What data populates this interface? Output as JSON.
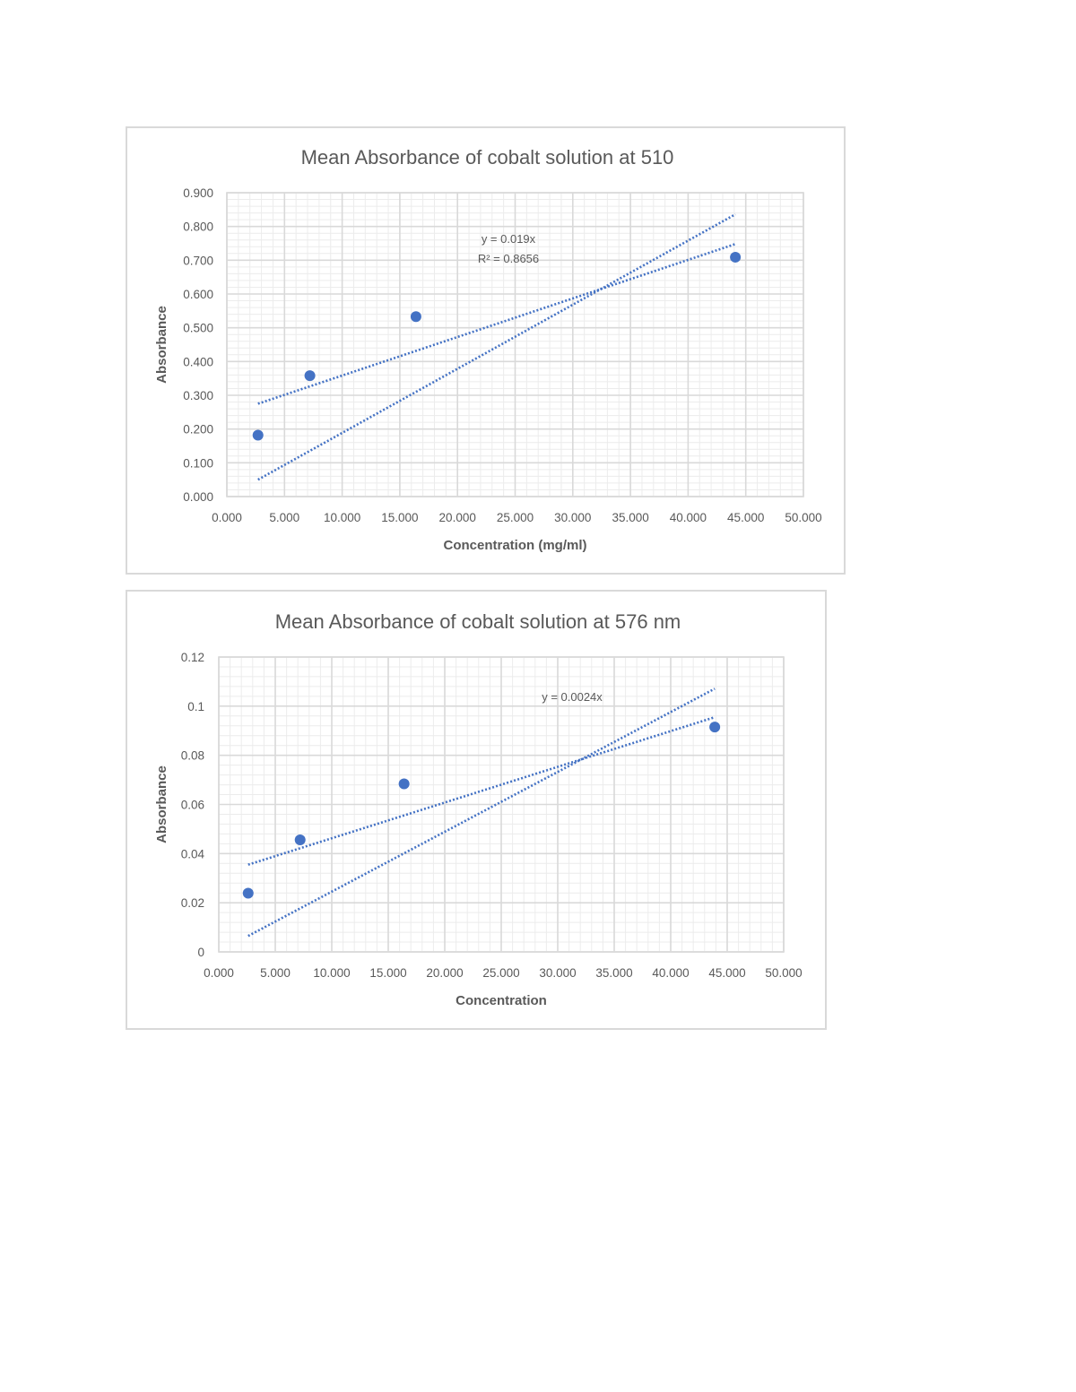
{
  "chart_data": [
    {
      "type": "scatter",
      "title": "Mean Absorbance of cobalt solution at 510",
      "xlabel": "Concentration (mg/ml)",
      "ylabel": "Absorbance",
      "xlim": [
        0,
        50
      ],
      "ylim": [
        0,
        0.9
      ],
      "x_ticks": [
        "0.000",
        "5.000",
        "10.000",
        "15.000",
        "20.000",
        "25.000",
        "30.000",
        "35.000",
        "40.000",
        "45.000",
        "50.000"
      ],
      "y_ticks": [
        "0.000",
        "0.100",
        "0.200",
        "0.300",
        "0.400",
        "0.500",
        "0.600",
        "0.700",
        "0.800",
        "0.900"
      ],
      "grid": true,
      "legend": "none",
      "series": [
        {
          "x": [
            2.7,
            7.2,
            16.4,
            44.1
          ],
          "y": [
            0.182,
            0.358,
            0.533,
            0.709
          ],
          "color": "#4472c4"
        }
      ],
      "trendlines": [
        {
          "kind": "linear",
          "x": [
            2.7,
            44.1
          ],
          "y": [
            0.275,
            0.748
          ],
          "color": "#4472c4"
        },
        {
          "kind": "linear-through-origin",
          "x": [
            2.7,
            44.1
          ],
          "y": [
            0.05,
            0.836
          ],
          "color": "#4472c4"
        }
      ],
      "annotations": [
        "y = 0.019x",
        "R² = 0.8656"
      ]
    },
    {
      "type": "scatter",
      "title": "Mean Absorbance of cobalt solution at 576 nm",
      "xlabel": "Concentration",
      "ylabel": "Absorbance",
      "xlim": [
        0,
        50
      ],
      "ylim": [
        0,
        0.12
      ],
      "x_ticks": [
        "0.000",
        "5.000",
        "10.000",
        "15.000",
        "20.000",
        "25.000",
        "30.000",
        "35.000",
        "40.000",
        "45.000",
        "50.000"
      ],
      "y_ticks": [
        "0",
        "0.02",
        "0.04",
        "0.06",
        "0.08",
        "0.1",
        "0.12"
      ],
      "grid": true,
      "legend": "none",
      "series": [
        {
          "x": [
            2.6,
            7.2,
            16.4,
            43.9
          ],
          "y": [
            0.0239,
            0.0456,
            0.0684,
            0.0915
          ],
          "color": "#4472c4"
        }
      ],
      "trendlines": [
        {
          "kind": "linear",
          "x": [
            2.6,
            43.9
          ],
          "y": [
            0.0355,
            0.0955
          ],
          "color": "#4472c4"
        },
        {
          "kind": "linear-through-origin",
          "x": [
            2.6,
            43.9
          ],
          "y": [
            0.0065,
            0.1071
          ],
          "color": "#4472c4"
        }
      ],
      "annotations": [
        "y = 0.0024x"
      ]
    }
  ]
}
